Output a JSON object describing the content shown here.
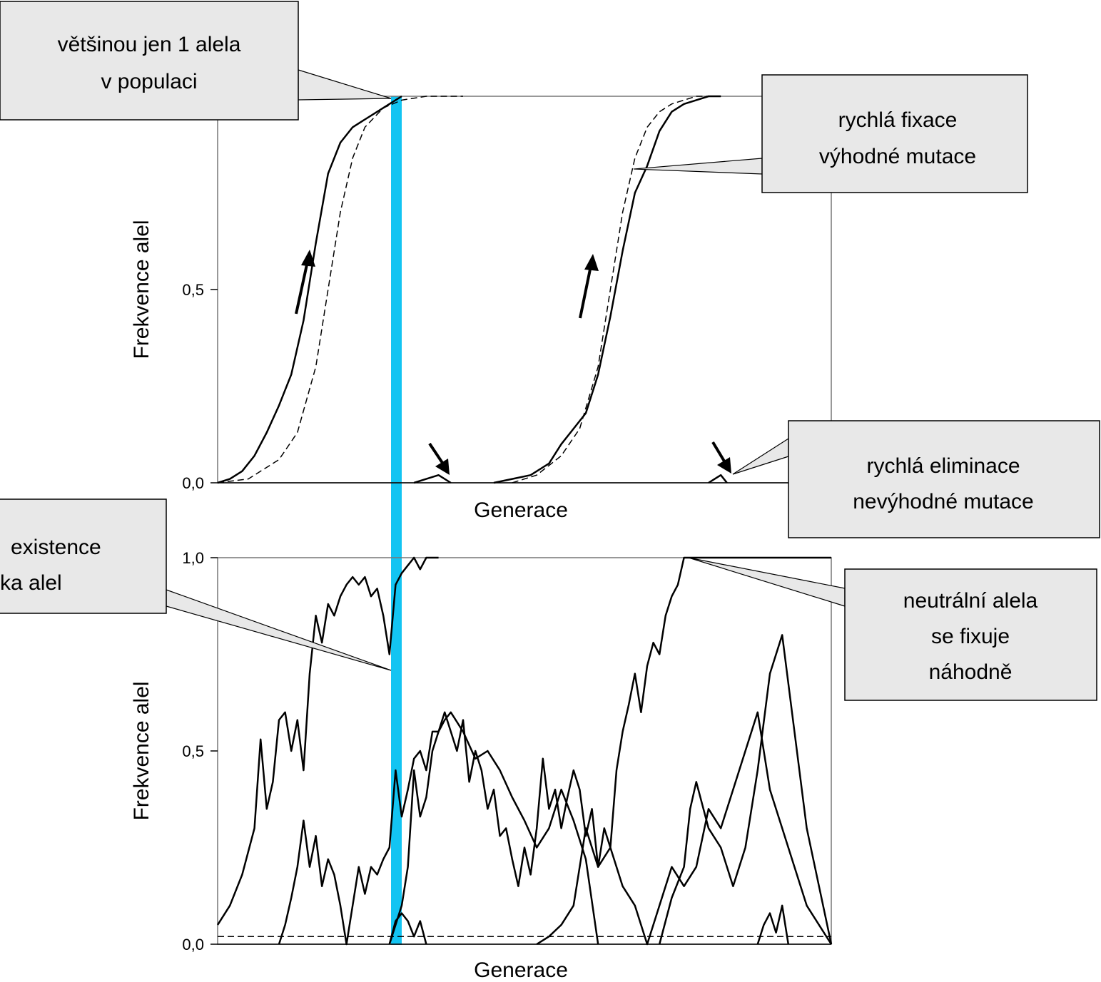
{
  "chart_data": [
    {
      "type": "line",
      "panel": "top",
      "title": "",
      "xlabel": "Generace",
      "ylabel": "Frekvence alel",
      "xlim": [
        0,
        100
      ],
      "ylim": [
        0,
        1
      ],
      "yticks": [
        0,
        0.5
      ],
      "ytick_labels": [
        "0,0",
        "0,5"
      ],
      "grid": false,
      "series": [
        {
          "style": "solid",
          "x": [
            0,
            2,
            4,
            6,
            8,
            10,
            12,
            14,
            16,
            18,
            20,
            22,
            24,
            26,
            28,
            30
          ],
          "y": [
            0.0,
            0.01,
            0.03,
            0.07,
            0.13,
            0.2,
            0.28,
            0.42,
            0.62,
            0.8,
            0.88,
            0.92,
            0.94,
            0.96,
            0.98,
            1.0
          ]
        },
        {
          "style": "solid",
          "x": [
            32,
            34,
            36,
            38
          ],
          "y": [
            0.0,
            0.01,
            0.02,
            0.0
          ]
        },
        {
          "style": "solid",
          "x": [
            45,
            48,
            51,
            54,
            56,
            58,
            60,
            62,
            64,
            66,
            68,
            70,
            72,
            74,
            76,
            78,
            80,
            82
          ],
          "y": [
            0.0,
            0.01,
            0.02,
            0.05,
            0.1,
            0.14,
            0.18,
            0.28,
            0.43,
            0.6,
            0.75,
            0.82,
            0.91,
            0.96,
            0.98,
            0.99,
            1.0,
            1.0
          ]
        },
        {
          "style": "solid",
          "x": [
            80,
            81,
            82,
            83
          ],
          "y": [
            0.0,
            0.01,
            0.02,
            0.0
          ]
        },
        {
          "style": "dashed",
          "x": [
            0,
            5,
            10,
            13,
            16,
            18,
            20,
            22,
            24,
            27,
            30,
            34,
            40
          ],
          "y": [
            0.0,
            0.01,
            0.06,
            0.13,
            0.3,
            0.5,
            0.7,
            0.84,
            0.92,
            0.97,
            0.99,
            1.0,
            1.0
          ]
        },
        {
          "style": "dashed",
          "x": [
            48,
            52,
            56,
            59,
            62,
            64,
            66,
            68,
            70,
            72,
            74,
            76,
            78,
            82
          ],
          "y": [
            0.0,
            0.02,
            0.07,
            0.14,
            0.3,
            0.5,
            0.7,
            0.84,
            0.92,
            0.96,
            0.98,
            0.99,
            1.0,
            1.0
          ]
        }
      ]
    },
    {
      "type": "line",
      "panel": "bottom",
      "title": "",
      "xlabel": "Generace",
      "ylabel": "Frekvence alel",
      "xlim": [
        0,
        100
      ],
      "ylim": [
        0,
        1
      ],
      "yticks": [
        0,
        0.5,
        1
      ],
      "ytick_labels": [
        "0,0",
        "0,5",
        "1,0"
      ],
      "grid": false,
      "series": [
        {
          "style": "solid",
          "x": [
            0,
            2,
            4,
            6,
            7,
            8,
            9,
            10,
            11,
            12,
            13,
            14,
            15,
            16,
            17,
            18,
            19,
            20,
            21,
            22,
            23,
            24,
            25,
            26,
            27,
            28,
            29,
            30,
            31,
            32,
            33,
            34,
            35,
            36
          ],
          "y": [
            0.05,
            0.1,
            0.18,
            0.3,
            0.53,
            0.35,
            0.42,
            0.58,
            0.6,
            0.5,
            0.58,
            0.45,
            0.7,
            0.85,
            0.78,
            0.88,
            0.85,
            0.9,
            0.93,
            0.95,
            0.93,
            0.95,
            0.9,
            0.92,
            0.85,
            0.75,
            0.93,
            0.96,
            0.98,
            1.0,
            0.97,
            1.0,
            1.0,
            1.0
          ]
        },
        {
          "style": "solid",
          "x": [
            10,
            11,
            12,
            13,
            14,
            15,
            16,
            17,
            18,
            19,
            20,
            21,
            22,
            23,
            24,
            25,
            26,
            27,
            28,
            29,
            30,
            31,
            32,
            33,
            34,
            35,
            36,
            37,
            38,
            39,
            40,
            41,
            42,
            43,
            44,
            45,
            46,
            47,
            48,
            49,
            50,
            51,
            52,
            53,
            54,
            55,
            56,
            57,
            58,
            59,
            60,
            61,
            62,
            63,
            64,
            65,
            66,
            67,
            68,
            69,
            70,
            71,
            72,
            73,
            74,
            75,
            76,
            77,
            78,
            79,
            80,
            81,
            82,
            83,
            84,
            85,
            86,
            87,
            88,
            89,
            90,
            91,
            92,
            93,
            94,
            95,
            96,
            97,
            98,
            99,
            100
          ],
          "y": [
            0.0,
            0.05,
            0.12,
            0.2,
            0.32,
            0.2,
            0.28,
            0.15,
            0.22,
            0.18,
            0.1,
            0.0,
            0.1,
            0.2,
            0.13,
            0.2,
            0.18,
            0.22,
            0.25,
            0.45,
            0.33,
            0.4,
            0.48,
            0.5,
            0.45,
            0.55,
            0.55,
            0.6,
            0.55,
            0.5,
            0.58,
            0.42,
            0.5,
            0.45,
            0.35,
            0.4,
            0.28,
            0.3,
            0.22,
            0.15,
            0.25,
            0.18,
            0.3,
            0.48,
            0.35,
            0.4,
            0.3,
            0.38,
            0.45,
            0.4,
            0.28,
            0.35,
            0.2,
            0.3,
            0.25,
            0.45,
            0.55,
            0.62,
            0.7,
            0.6,
            0.72,
            0.78,
            0.75,
            0.85,
            0.9,
            0.93,
            1.0,
            1.0,
            1.0,
            1.0,
            1.0,
            1.0,
            1.0,
            1.0,
            1.0,
            1.0,
            1.0,
            1.0,
            1.0,
            1.0,
            1.0,
            1.0,
            1.0,
            1.0,
            1.0,
            1.0,
            1.0,
            1.0,
            1.0,
            1.0,
            1.0
          ]
        },
        {
          "style": "solid",
          "x": [
            52,
            54,
            56,
            58,
            60,
            62,
            64,
            66,
            68,
            70,
            72,
            74,
            76,
            78,
            80,
            82,
            84,
            86,
            88,
            90,
            92,
            94,
            96,
            98,
            100
          ],
          "y": [
            0.0,
            0.02,
            0.05,
            0.1,
            0.3,
            0.2,
            0.25,
            0.15,
            0.1,
            0.0,
            0.1,
            0.2,
            0.15,
            0.2,
            0.35,
            0.3,
            0.4,
            0.5,
            0.6,
            0.4,
            0.3,
            0.2,
            0.1,
            0.05,
            0.0
          ]
        },
        {
          "style": "solid",
          "x": [
            28,
            29,
            30,
            31,
            32,
            33,
            34,
            35,
            36,
            37,
            38,
            40,
            42,
            44,
            46,
            48,
            50,
            52,
            54,
            56,
            58,
            60,
            62
          ],
          "y": [
            0.0,
            0.05,
            0.1,
            0.2,
            0.45,
            0.33,
            0.38,
            0.5,
            0.55,
            0.58,
            0.6,
            0.55,
            0.48,
            0.5,
            0.45,
            0.38,
            0.32,
            0.25,
            0.3,
            0.4,
            0.32,
            0.22,
            0.0
          ]
        },
        {
          "style": "solid",
          "x": [
            28,
            29,
            30,
            31,
            32,
            33,
            34
          ],
          "y": [
            0.0,
            0.06,
            0.08,
            0.06,
            0.02,
            0.06,
            0.0
          ]
        },
        {
          "style": "solid",
          "x": [
            72,
            74,
            76,
            77,
            78,
            80,
            82,
            84,
            86,
            88,
            90,
            92,
            94,
            96,
            98,
            100
          ],
          "y": [
            0.0,
            0.12,
            0.2,
            0.35,
            0.42,
            0.3,
            0.25,
            0.15,
            0.25,
            0.45,
            0.7,
            0.8,
            0.55,
            0.3,
            0.15,
            0.0
          ]
        },
        {
          "style": "solid",
          "x": [
            88,
            89,
            90,
            91,
            92,
            93
          ],
          "y": [
            0.0,
            0.05,
            0.08,
            0.03,
            0.1,
            0.0
          ]
        },
        {
          "style": "dashed",
          "x": [
            0,
            100
          ],
          "y": [
            0.02,
            0.02
          ]
        }
      ]
    }
  ],
  "callouts": {
    "top_left": {
      "lines": [
        "většinou jen 1 alela",
        "v populaci"
      ]
    },
    "top_right": {
      "lines": [
        "rychlá fixace",
        "výhodné mutace"
      ]
    },
    "mid_right": {
      "lines": [
        "rychlá eliminace",
        "nevýhodné mutace"
      ]
    },
    "mid_left": {
      "lines": [
        "existence",
        "ka alel"
      ]
    },
    "bottom_right": {
      "lines": [
        "neutrální alela",
        "se fixuje",
        "náhodně"
      ]
    }
  },
  "colors": {
    "highlight_band": "#13c4f2",
    "callout_fill": "#e8e8e8",
    "line": "#000000"
  }
}
